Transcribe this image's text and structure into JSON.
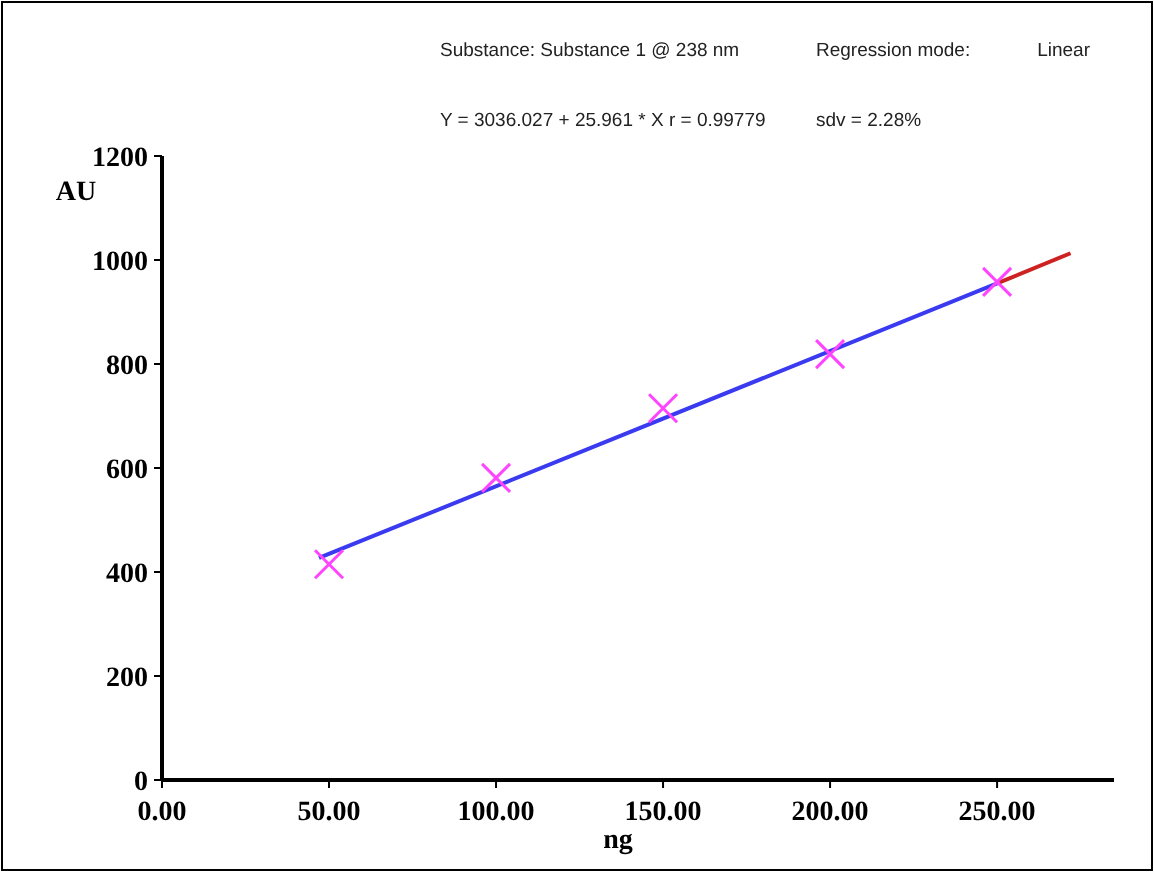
{
  "chart_data": {
    "type": "scatter",
    "annotations": [
      "Substance: Substance 1 @ 238 nm",
      "Regression mode:",
      "Linear",
      "Y = 3036.027 + 25.961 * X  r = 0.99779",
      "sdv = 2.28%"
    ],
    "xlabel": "ng",
    "ylabel": "AU",
    "xlim": [
      0,
      285
    ],
    "xticks": [
      {
        "value": 0,
        "label": "0.00"
      },
      {
        "value": 50,
        "label": "50.00"
      },
      {
        "value": 100,
        "label": "100.00"
      },
      {
        "value": 150,
        "label": "150.00"
      },
      {
        "value": 200,
        "label": "200.00"
      },
      {
        "value": 250,
        "label": "250.00"
      }
    ],
    "ylim": [
      0,
      1200
    ],
    "yticks": [
      0,
      200,
      400,
      600,
      800,
      1000,
      1200
    ],
    "grid": false,
    "series": [
      {
        "type": "line",
        "color": "#3a3af0",
        "x": [
          47,
          250
        ],
        "values": [
          427,
          955
        ],
        "marker": "none",
        "line_style": "solid"
      },
      {
        "type": "line",
        "color": "#cc2222",
        "x": [
          250,
          272
        ],
        "values": [
          955,
          1013
        ],
        "marker": "none",
        "line_style": "solid"
      },
      {
        "color": "#ff44ff",
        "x": [
          50,
          100,
          150,
          200,
          250
        ],
        "values": [
          415,
          581,
          715,
          819,
          958
        ],
        "marker": "cross"
      }
    ]
  }
}
